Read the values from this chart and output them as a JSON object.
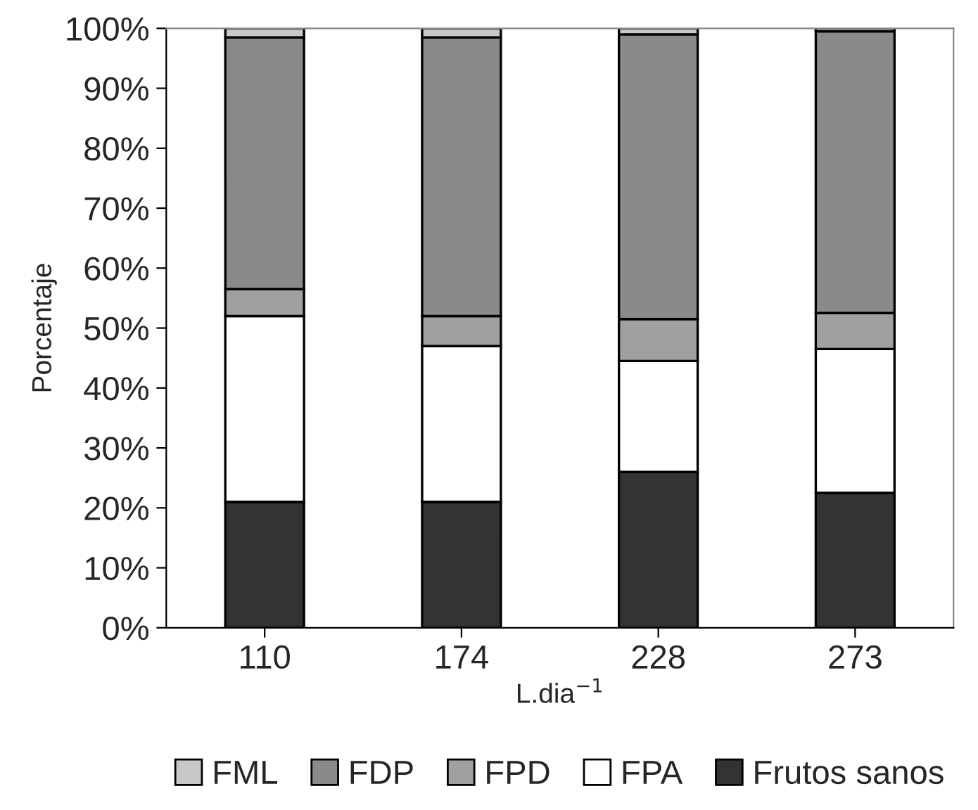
{
  "chart_data": {
    "type": "bar",
    "stacked": true,
    "xlabel": "L.dia$^{−1}$",
    "ylabel": "Porcentaje",
    "categories": [
      "110",
      "174",
      "228",
      "273"
    ],
    "series": [
      {
        "name": "Frutos sanos",
        "color": "#333333",
        "values": [
          21,
          21,
          26,
          22.5
        ]
      },
      {
        "name": "FPA",
        "color": "#ffffff",
        "values": [
          31,
          26,
          18.5,
          24
        ]
      },
      {
        "name": "FPD",
        "color": "#a0a0a0",
        "values": [
          4.5,
          5,
          7,
          6
        ]
      },
      {
        "name": "FDP",
        "color": "#8a8a8a",
        "values": [
          42,
          46.5,
          47.5,
          47
        ]
      },
      {
        "name": "FML",
        "color": "#c8c8c8",
        "values": [
          1.5,
          1.5,
          1,
          0.5
        ]
      }
    ],
    "ylim": [
      0,
      100
    ],
    "yticks": [
      {
        "value": 0,
        "label": "0%"
      },
      {
        "value": 10,
        "label": "10%"
      },
      {
        "value": 20,
        "label": "20%"
      },
      {
        "value": 30,
        "label": "30%"
      },
      {
        "value": 40,
        "label": "40%"
      },
      {
        "value": 50,
        "label": "50%"
      },
      {
        "value": 60,
        "label": "60%"
      },
      {
        "value": 70,
        "label": "70%"
      },
      {
        "value": 80,
        "label": "80%"
      },
      {
        "value": 90,
        "label": "90%"
      },
      {
        "value": 100,
        "label": "100%"
      }
    ],
    "grid": false,
    "legend": "bottom"
  }
}
